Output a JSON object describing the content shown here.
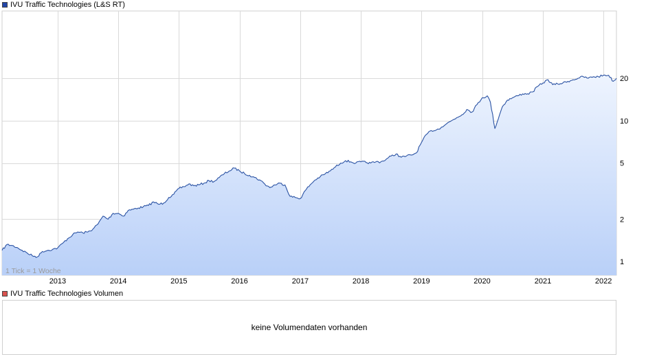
{
  "legend": {
    "price_label": "IVU Traffic Technologies (L&S RT)",
    "volume_label": "IVU Traffic Technologies Volumen"
  },
  "colors": {
    "price_swatch": "#2346a8",
    "volume_swatch": "#d9534f",
    "line": "#2a52a3",
    "fill_top": "#eef4fe",
    "fill_bottom": "#b9d0f8",
    "grid": "#d9d9d9"
  },
  "volume": {
    "message": "keine Volumendaten vorhanden"
  },
  "chart_data": {
    "type": "area",
    "annotation": "1 Tick = 1 Woche",
    "y_scale": "log",
    "ylim": [
      0.8,
      60
    ],
    "x_range": [
      "2012-02-01",
      "2022-03-20"
    ],
    "y_ticks": [
      1,
      2,
      5,
      10,
      20
    ],
    "y_tick_labels": [
      "1",
      "2",
      "5",
      "10",
      "20"
    ],
    "x_ticks": [
      "2013",
      "2014",
      "2015",
      "2016",
      "2017",
      "2018",
      "2019",
      "2020",
      "2021",
      "2022"
    ],
    "x_tick_dates": [
      "2013-01-01",
      "2014-01-01",
      "2015-01-01",
      "2016-01-01",
      "2017-01-01",
      "2018-01-01",
      "2019-01-01",
      "2020-01-01",
      "2021-01-01",
      "2022-01-01"
    ],
    "grid": true,
    "series": [
      {
        "x": [
          "2012-02-01",
          "2012-03-01",
          "2012-04-01",
          "2012-05-01",
          "2012-06-01",
          "2012-07-01",
          "2012-08-01",
          "2012-09-01",
          "2012-10-01",
          "2012-11-01",
          "2012-12-01",
          "2013-01-01",
          "2013-02-01",
          "2013-03-01",
          "2013-04-01",
          "2013-05-01",
          "2013-06-01",
          "2013-07-01",
          "2013-08-01",
          "2013-09-01",
          "2013-10-01",
          "2013-11-01",
          "2013-12-01",
          "2014-01-01",
          "2014-02-01",
          "2014-03-01",
          "2014-04-01",
          "2014-05-01",
          "2014-06-01",
          "2014-07-01",
          "2014-08-01",
          "2014-09-01",
          "2014-10-01",
          "2014-11-01",
          "2014-12-01",
          "2015-01-01",
          "2015-02-01",
          "2015-03-01",
          "2015-04-01",
          "2015-05-01",
          "2015-06-01",
          "2015-07-01",
          "2015-08-01",
          "2015-09-01",
          "2015-10-01",
          "2015-11-01",
          "2015-12-01",
          "2016-01-01",
          "2016-02-01",
          "2016-03-01",
          "2016-04-01",
          "2016-05-01",
          "2016-06-01",
          "2016-07-01",
          "2016-08-01",
          "2016-09-01",
          "2016-10-01",
          "2016-11-01",
          "2016-12-01",
          "2017-01-01",
          "2017-02-01",
          "2017-03-01",
          "2017-04-01",
          "2017-05-01",
          "2017-06-01",
          "2017-07-01",
          "2017-08-01",
          "2017-09-01",
          "2017-10-01",
          "2017-11-01",
          "2017-12-01",
          "2018-01-01",
          "2018-02-01",
          "2018-03-01",
          "2018-04-01",
          "2018-05-01",
          "2018-06-01",
          "2018-07-01",
          "2018-08-01",
          "2018-09-01",
          "2018-10-01",
          "2018-11-01",
          "2018-12-01",
          "2019-01-01",
          "2019-02-01",
          "2019-03-01",
          "2019-04-01",
          "2019-05-01",
          "2019-06-01",
          "2019-07-01",
          "2019-08-01",
          "2019-09-01",
          "2019-10-01",
          "2019-11-01",
          "2019-12-01",
          "2020-01-01",
          "2020-02-01",
          "2020-02-20",
          "2020-03-18",
          "2020-04-15",
          "2020-05-01",
          "2020-06-01",
          "2020-07-01",
          "2020-08-01",
          "2020-09-01",
          "2020-10-01",
          "2020-11-01",
          "2020-12-01",
          "2021-01-01",
          "2021-02-01",
          "2021-03-01",
          "2021-04-01",
          "2021-05-01",
          "2021-06-01",
          "2021-07-01",
          "2021-08-01",
          "2021-09-01",
          "2021-10-01",
          "2021-11-01",
          "2021-12-01",
          "2022-01-01",
          "2022-02-01",
          "2022-03-01",
          "2022-03-20"
        ],
        "values": [
          1.2,
          1.32,
          1.3,
          1.26,
          1.2,
          1.15,
          1.1,
          1.08,
          1.18,
          1.2,
          1.22,
          1.25,
          1.35,
          1.45,
          1.55,
          1.62,
          1.6,
          1.62,
          1.7,
          1.85,
          2.1,
          2.0,
          2.2,
          2.2,
          2.1,
          2.3,
          2.35,
          2.4,
          2.45,
          2.5,
          2.65,
          2.55,
          2.6,
          2.85,
          3.0,
          3.3,
          3.4,
          3.55,
          3.45,
          3.5,
          3.6,
          3.75,
          3.7,
          3.95,
          4.2,
          4.4,
          4.6,
          4.4,
          4.2,
          4.1,
          3.95,
          3.8,
          3.55,
          3.35,
          3.5,
          3.6,
          3.5,
          2.9,
          2.85,
          2.8,
          3.2,
          3.5,
          3.8,
          4.0,
          4.2,
          4.4,
          4.7,
          5.0,
          5.2,
          5.1,
          5.0,
          5.1,
          5.05,
          5.0,
          5.1,
          5.1,
          5.3,
          5.6,
          5.8,
          5.5,
          5.6,
          5.7,
          5.9,
          7.0,
          8.0,
          8.5,
          8.6,
          9.0,
          9.5,
          10.0,
          10.5,
          11.0,
          12.0,
          11.5,
          13.0,
          14.5,
          15.0,
          13.5,
          8.8,
          11.0,
          12.5,
          14.0,
          14.5,
          15.0,
          15.5,
          15.5,
          16.0,
          17.5,
          18.5,
          19.5,
          18.0,
          18.2,
          18.5,
          19.0,
          19.5,
          20.0,
          20.5,
          20.0,
          20.5,
          20.5,
          21.0,
          21.0,
          19.0,
          20.0
        ]
      }
    ]
  }
}
